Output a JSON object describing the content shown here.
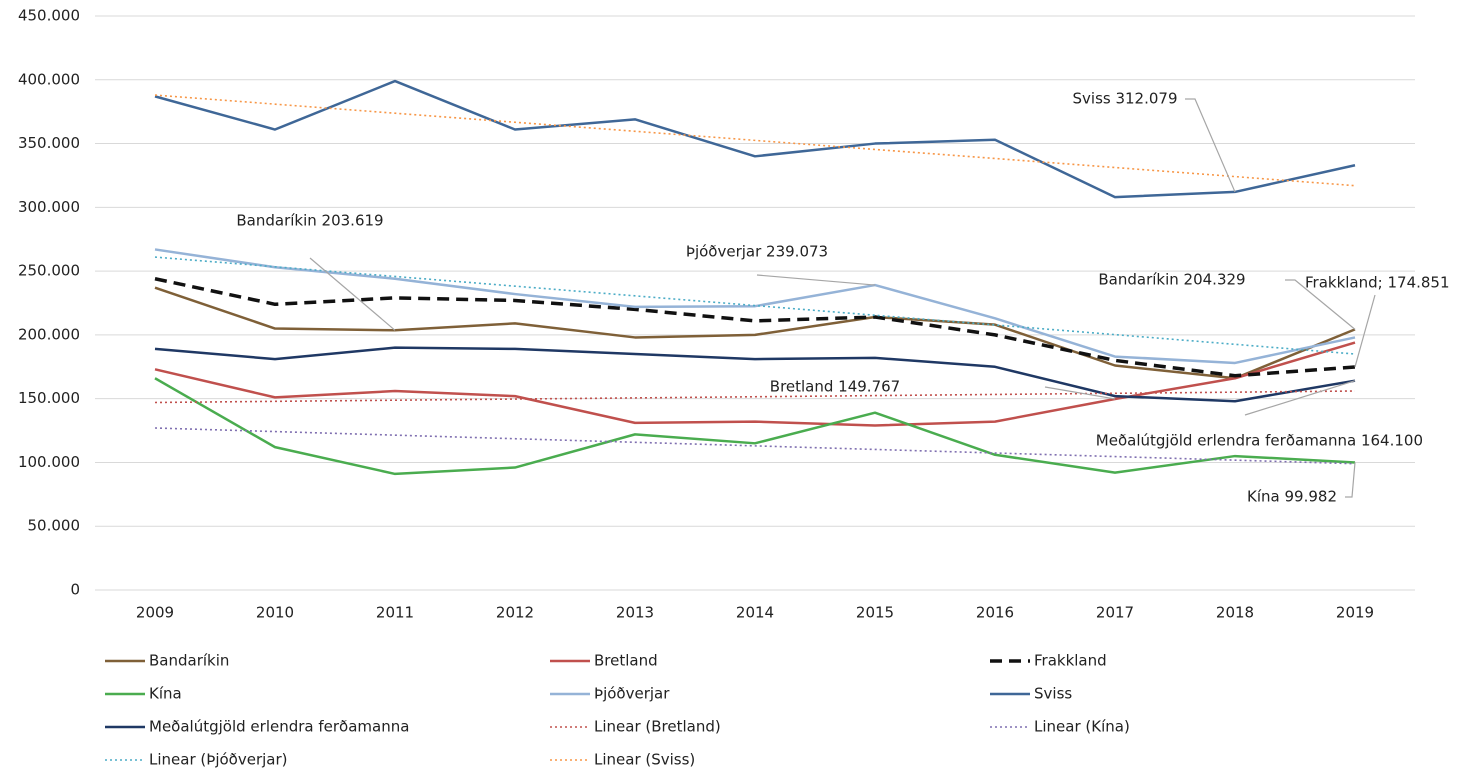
{
  "chart_data": {
    "type": "line",
    "categories": [
      "2009",
      "2010",
      "2011",
      "2012",
      "2013",
      "2014",
      "2015",
      "2016",
      "2017",
      "2018",
      "2019"
    ],
    "ylim": [
      0,
      450000
    ],
    "yticks": [
      0,
      {
        "value": 50000,
        "label": "50.000"
      },
      {
        "value": 100000,
        "label": "100.000"
      },
      {
        "value": 150000,
        "label": "150.000"
      },
      {
        "value": 200000,
        "label": "200.000"
      },
      {
        "value": 250000,
        "label": "250.000"
      },
      {
        "value": 300000,
        "label": "300.000"
      },
      {
        "value": 350000,
        "label": "350.000"
      },
      {
        "value": 400000,
        "label": "400.000"
      },
      {
        "value": 450000,
        "label": "450.000"
      }
    ],
    "grid": true,
    "legend": "bottom",
    "series": [
      {
        "name": "Bandaríkin",
        "color": "#7f6038",
        "style": "solid",
        "values": [
          237000,
          205000,
          203619,
          209000,
          198000,
          200000,
          214000,
          208000,
          176000,
          166000,
          204329
        ],
        "value_labels": [
          null,
          null,
          "Bandaríkin 203.619",
          null,
          null,
          null,
          null,
          null,
          null,
          null,
          "Bandaríkin 204.329"
        ]
      },
      {
        "name": "Bretland",
        "color": "#c0504d",
        "style": "solid",
        "values": [
          173000,
          151000,
          156000,
          152000,
          131000,
          132000,
          129000,
          132000,
          149767,
          166000,
          194000
        ],
        "value_labels": [
          null,
          null,
          null,
          null,
          null,
          null,
          null,
          null,
          "Bretland 149.767",
          null,
          null
        ]
      },
      {
        "name": "Frakkland",
        "color": "#111111",
        "style": "dashed",
        "values": [
          244000,
          224000,
          229000,
          227000,
          220000,
          211000,
          214000,
          200000,
          180000,
          168000,
          174851
        ],
        "value_labels": [
          null,
          null,
          null,
          null,
          null,
          null,
          null,
          null,
          null,
          null,
          "Frakkland; 174.851"
        ]
      },
      {
        "name": "Kína",
        "color": "#4aac4f",
        "style": "solid",
        "values": [
          166000,
          112000,
          91000,
          96000,
          122000,
          115000,
          139000,
          106000,
          92000,
          105000,
          99982
        ],
        "value_labels": [
          null,
          null,
          null,
          null,
          null,
          null,
          null,
          null,
          null,
          null,
          "Kína 99.982"
        ]
      },
      {
        "name": "Þjóðverjar",
        "color": "#95b3d7",
        "style": "solid",
        "values": [
          267000,
          253000,
          244000,
          232000,
          222000,
          222500,
          239073,
          213000,
          183000,
          178000,
          198000
        ],
        "value_labels": [
          null,
          null,
          null,
          null,
          null,
          null,
          "Þjóðverjar 239.073",
          null,
          null,
          null,
          null
        ]
      },
      {
        "name": "Sviss",
        "color": "#3f6797",
        "style": "solid",
        "values": [
          387000,
          361000,
          399000,
          361000,
          369000,
          340000,
          350000,
          353000,
          308000,
          312079,
          333000
        ],
        "value_labels": [
          null,
          null,
          null,
          null,
          null,
          null,
          null,
          null,
          null,
          "Sviss 312.079",
          null
        ]
      },
      {
        "name": "Meðalútgjöld erlendra ferðamanna",
        "color": "#1f3864",
        "style": "solid",
        "values": [
          189000,
          181000,
          190000,
          189000,
          185000,
          181000,
          182000,
          175000,
          152000,
          148000,
          164100
        ],
        "value_labels": [
          null,
          null,
          null,
          null,
          null,
          null,
          null,
          null,
          null,
          null,
          "Meðalútgjöld erlendra ferðamanna  164.100"
        ]
      },
      {
        "name": "Linear (Bretland)",
        "color": "#c0504d",
        "style": "dotted",
        "values": [
          147000,
          147900,
          148800,
          149700,
          150600,
          151500,
          152400,
          153300,
          154200,
          155100,
          156000
        ]
      },
      {
        "name": "Linear (Kína)",
        "color": "#7f6fb0",
        "style": "dotted",
        "values": [
          127000,
          124200,
          121400,
          118600,
          115800,
          113000,
          110200,
          107400,
          104600,
          101800,
          99000
        ]
      },
      {
        "name": "Linear (Þjóðverjar)",
        "color": "#4bacc6",
        "style": "dotted",
        "values": [
          261000,
          253400,
          245800,
          238200,
          230600,
          223000,
          215400,
          207800,
          200200,
          192600,
          185000
        ]
      },
      {
        "name": "Linear (Sviss)",
        "color": "#f79646",
        "style": "dotted",
        "values": [
          388000,
          380900,
          373800,
          366700,
          359600,
          352500,
          345400,
          338300,
          331200,
          324100,
          317000
        ]
      }
    ]
  }
}
